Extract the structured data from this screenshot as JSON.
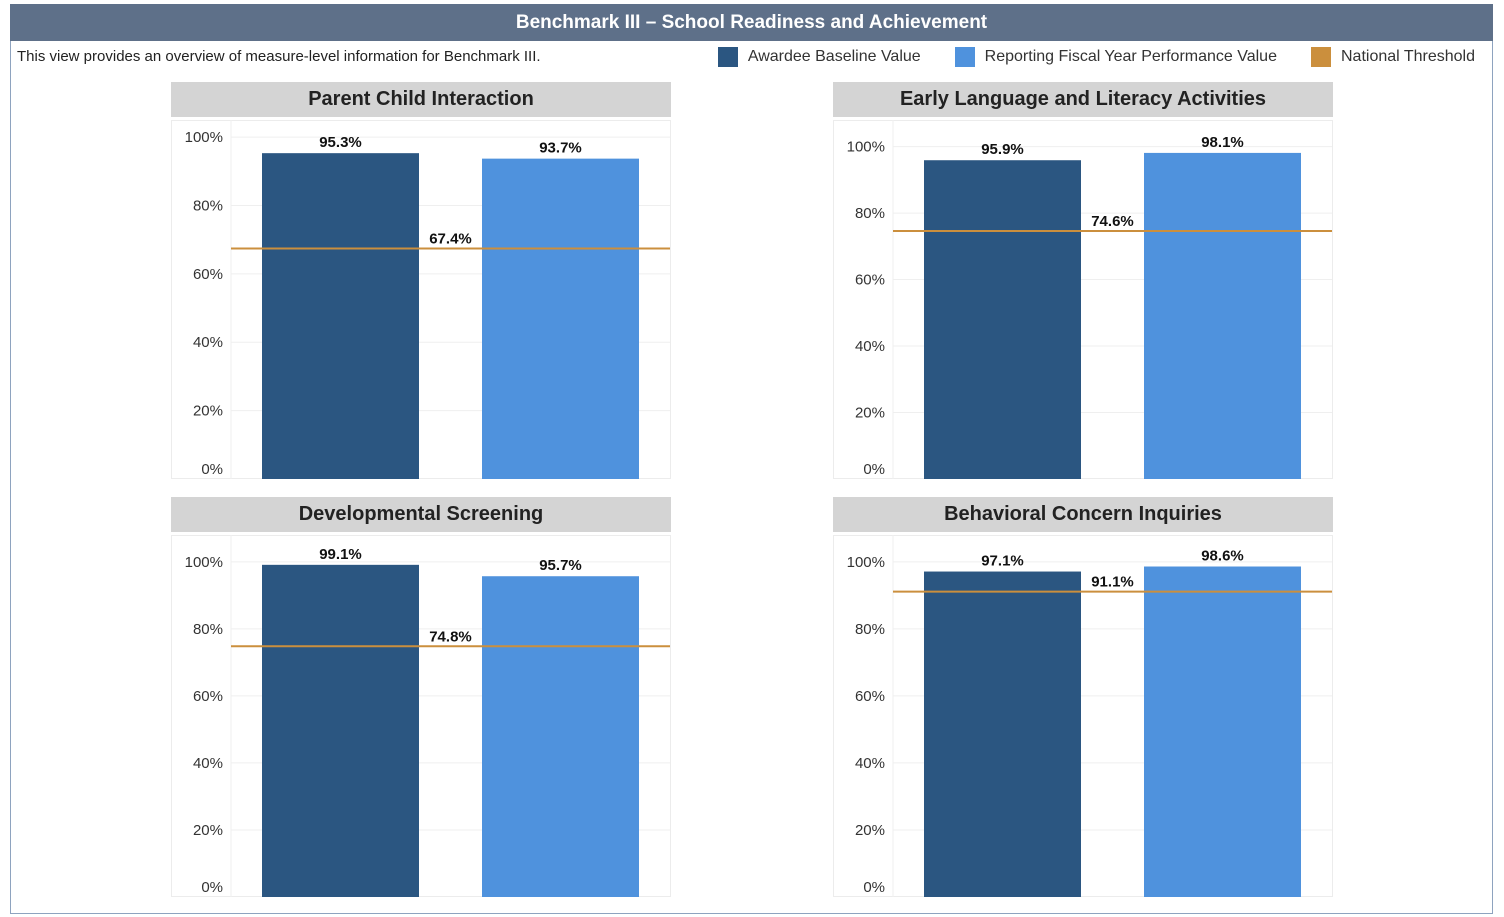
{
  "header": {
    "title": "Benchmark III – School Readiness and Achievement",
    "description": "This view provides an overview of measure-level information for Benchmark III."
  },
  "legend": [
    {
      "label": "Awardee Baseline Value",
      "color": "#2b5681"
    },
    {
      "label": "Reporting Fiscal Year Performance Value",
      "color": "#4f92dd"
    },
    {
      "label": "National Threshold",
      "color": "#cb8f3d"
    }
  ],
  "chart_data": [
    {
      "type": "bar",
      "title": "Parent Child Interaction",
      "series": [
        {
          "name": "Awardee Baseline Value",
          "value": 95.3,
          "label": "95.3%"
        },
        {
          "name": "Reporting Fiscal Year Performance Value",
          "value": 93.7,
          "label": "93.7%"
        }
      ],
      "threshold": {
        "name": "National Threshold",
        "value": 67.4,
        "label": "67.4%"
      },
      "ylim": [
        0,
        105
      ],
      "yticks": [
        0,
        20,
        40,
        60,
        80,
        100
      ],
      "ytick_labels": [
        "0%",
        "20%",
        "40%",
        "60%",
        "80%",
        "100%"
      ]
    },
    {
      "type": "bar",
      "title": "Early Language and Literacy Activities",
      "series": [
        {
          "name": "Awardee Baseline Value",
          "value": 95.9,
          "label": "95.9%"
        },
        {
          "name": "Reporting Fiscal Year Performance Value",
          "value": 98.1,
          "label": "98.1%"
        }
      ],
      "threshold": {
        "name": "National Threshold",
        "value": 74.6,
        "label": "74.6%"
      },
      "ylim": [
        0,
        108
      ],
      "yticks": [
        0,
        20,
        40,
        60,
        80,
        100
      ],
      "ytick_labels": [
        "0%",
        "20%",
        "40%",
        "60%",
        "80%",
        "100%"
      ]
    },
    {
      "type": "bar",
      "title": "Developmental Screening",
      "series": [
        {
          "name": "Awardee Baseline Value",
          "value": 99.1,
          "label": "99.1%"
        },
        {
          "name": "Reporting Fiscal Year Performance Value",
          "value": 95.7,
          "label": "95.7%"
        }
      ],
      "threshold": {
        "name": "National Threshold",
        "value": 74.8,
        "label": "74.8%"
      },
      "ylim": [
        0,
        108
      ],
      "yticks": [
        0,
        20,
        40,
        60,
        80,
        100
      ],
      "ytick_labels": [
        "0%",
        "20%",
        "40%",
        "60%",
        "80%",
        "100%"
      ]
    },
    {
      "type": "bar",
      "title": "Behavioral Concern Inquiries",
      "series": [
        {
          "name": "Awardee Baseline Value",
          "value": 97.1,
          "label": "97.1%"
        },
        {
          "name": "Reporting Fiscal Year Performance Value",
          "value": 98.6,
          "label": "98.6%"
        }
      ],
      "threshold": {
        "name": "National Threshold",
        "value": 91.1,
        "label": "91.1%"
      },
      "ylim": [
        0,
        108
      ],
      "yticks": [
        0,
        20,
        40,
        60,
        80,
        100
      ],
      "ytick_labels": [
        "0%",
        "20%",
        "40%",
        "60%",
        "80%",
        "100%"
      ]
    }
  ]
}
